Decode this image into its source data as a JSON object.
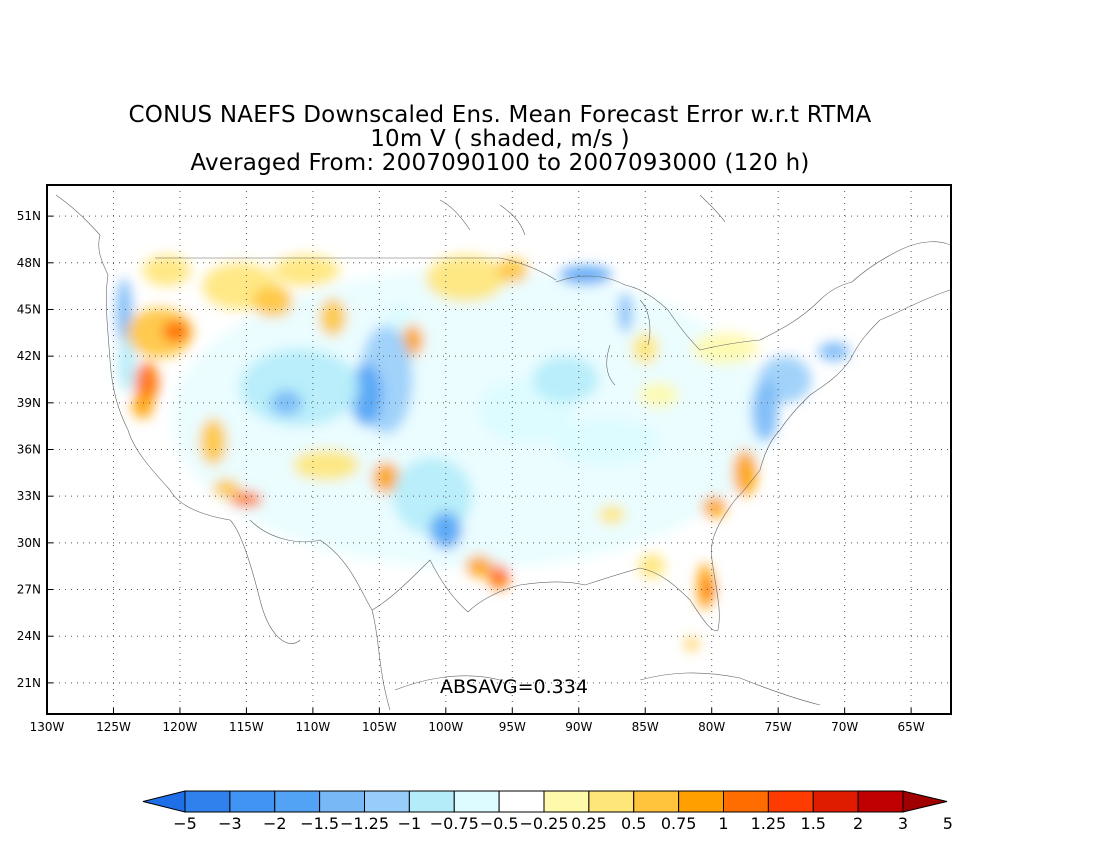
{
  "title": {
    "line1": "CONUS NAEFS Downscaled Ens. Mean Forecast Error w.r.t RTMA",
    "line2": "10m V ( shaded, m/s )",
    "line3": "Averaged From: 2007090100 to 2007093000 (120 h)"
  },
  "stat": {
    "text": "ABSAVG=0.334",
    "value": 0.334
  },
  "axes": {
    "lat_labels": [
      "21N",
      "24N",
      "27N",
      "30N",
      "33N",
      "36N",
      "39N",
      "42N",
      "45N",
      "48N",
      "51N"
    ],
    "lat_values": [
      21,
      24,
      27,
      30,
      33,
      36,
      39,
      42,
      45,
      48,
      51
    ],
    "lon_labels": [
      "130W",
      "125W",
      "120W",
      "115W",
      "110W",
      "105W",
      "100W",
      "95W",
      "90W",
      "85W",
      "80W",
      "75W",
      "70W",
      "65W"
    ],
    "lon_values": [
      -130,
      -125,
      -120,
      -115,
      -110,
      -105,
      -100,
      -95,
      -90,
      -85,
      -80,
      -75,
      -70,
      -65
    ],
    "lon_range": [
      -130,
      -62
    ],
    "lat_range": [
      19,
      53
    ],
    "grid": "dotted"
  },
  "colorbar": {
    "colors": [
      "#1f6fe8",
      "#2f82ee",
      "#3f94f4",
      "#52a3f5",
      "#78b8f7",
      "#98cdf9",
      "#b4ecfa",
      "#dcfcff",
      "#ffffff",
      "#fffaab",
      "#ffe678",
      "#ffc43c",
      "#ffa000",
      "#ff6d00",
      "#ff3c00",
      "#e01c00",
      "#c00000",
      "#a00000"
    ],
    "labels": [
      "−5",
      "−3",
      "−2",
      "−1.5",
      "−1.25",
      "−1",
      "−0.75",
      "−0.5",
      "−0.25",
      "0.25",
      "0.5",
      "0.75",
      "1",
      "1.25",
      "1.5",
      "2",
      "3",
      "5"
    ]
  },
  "chart_data": {
    "type": "heatmap",
    "variable": "10m V",
    "units": "m/s",
    "absavg": 0.334,
    "blobs": [
      {
        "lon": -124.2,
        "lat": 44.8,
        "rx": 0.6,
        "ry": 2.2,
        "c": 4
      },
      {
        "lon": -124.0,
        "lat": 41.5,
        "rx": 0.7,
        "ry": 1.8,
        "c": 6
      },
      {
        "lon": -121.5,
        "lat": 43.5,
        "rx": 2.5,
        "ry": 1.6,
        "c": 11
      },
      {
        "lon": -120.3,
        "lat": 43.6,
        "rx": 1.0,
        "ry": 0.7,
        "c": 13
      },
      {
        "lon": -122.5,
        "lat": 40.3,
        "rx": 0.9,
        "ry": 1.3,
        "c": 13
      },
      {
        "lon": -122.8,
        "lat": 38.8,
        "rx": 0.8,
        "ry": 0.8,
        "c": 12
      },
      {
        "lon": -121.0,
        "lat": 47.5,
        "rx": 1.8,
        "ry": 1.0,
        "c": 10
      },
      {
        "lon": -115.5,
        "lat": 46.5,
        "rx": 2.8,
        "ry": 1.5,
        "c": 10
      },
      {
        "lon": -113.0,
        "lat": 45.5,
        "rx": 1.5,
        "ry": 1.0,
        "c": 11
      },
      {
        "lon": -110.5,
        "lat": 47.5,
        "rx": 2.5,
        "ry": 1.0,
        "c": 10
      },
      {
        "lon": -108.5,
        "lat": 44.5,
        "rx": 1.0,
        "ry": 1.2,
        "c": 11
      },
      {
        "lon": -102.5,
        "lat": 43.0,
        "rx": 0.8,
        "ry": 1.0,
        "c": 12
      },
      {
        "lon": -98.5,
        "lat": 47.0,
        "rx": 3.0,
        "ry": 1.5,
        "c": 10
      },
      {
        "lon": -103.5,
        "lat": 44.5,
        "rx": 1.0,
        "ry": 0.8,
        "c": 7
      },
      {
        "lon": -104.5,
        "lat": 40.5,
        "rx": 2.0,
        "ry": 3.5,
        "c": 5
      },
      {
        "lon": -106.0,
        "lat": 39.5,
        "rx": 1.2,
        "ry": 2.0,
        "c": 3
      },
      {
        "lon": -111.0,
        "lat": 40.0,
        "rx": 4.5,
        "ry": 2.5,
        "c": 6
      },
      {
        "lon": -112.0,
        "lat": 39.0,
        "rx": 1.2,
        "ry": 0.8,
        "c": 4
      },
      {
        "lon": -117.5,
        "lat": 36.5,
        "rx": 1.0,
        "ry": 1.5,
        "c": 11
      },
      {
        "lon": -115.0,
        "lat": 32.8,
        "rx": 1.2,
        "ry": 0.5,
        "c": 13
      },
      {
        "lon": -116.5,
        "lat": 33.5,
        "rx": 1.0,
        "ry": 0.6,
        "c": 11
      },
      {
        "lon": -109.0,
        "lat": 35.0,
        "rx": 2.5,
        "ry": 1.0,
        "c": 10
      },
      {
        "lon": -104.5,
        "lat": 34.2,
        "rx": 1.0,
        "ry": 1.0,
        "c": 12
      },
      {
        "lon": -101.0,
        "lat": 33.0,
        "rx": 3.0,
        "ry": 2.5,
        "c": 6
      },
      {
        "lon": -100.0,
        "lat": 30.8,
        "rx": 1.2,
        "ry": 1.2,
        "c": 3
      },
      {
        "lon": -97.5,
        "lat": 28.5,
        "rx": 1.0,
        "ry": 0.7,
        "c": 12
      },
      {
        "lon": -96.0,
        "lat": 27.8,
        "rx": 0.8,
        "ry": 0.8,
        "c": 13
      },
      {
        "lon": -94.0,
        "lat": 38.5,
        "rx": 3.5,
        "ry": 2.0,
        "c": 7
      },
      {
        "lon": -88.0,
        "lat": 36.5,
        "rx": 4.0,
        "ry": 1.5,
        "c": 7
      },
      {
        "lon": -91.0,
        "lat": 40.5,
        "rx": 2.5,
        "ry": 1.5,
        "c": 6
      },
      {
        "lon": -89.5,
        "lat": 47.2,
        "rx": 2.0,
        "ry": 0.6,
        "c": 3
      },
      {
        "lon": -86.5,
        "lat": 44.8,
        "rx": 0.5,
        "ry": 1.3,
        "c": 4
      },
      {
        "lon": -85.0,
        "lat": 42.5,
        "rx": 1.0,
        "ry": 1.0,
        "c": 10
      },
      {
        "lon": -79.0,
        "lat": 42.5,
        "rx": 2.5,
        "ry": 1.0,
        "c": 9
      },
      {
        "lon": -74.5,
        "lat": 40.5,
        "rx": 2.0,
        "ry": 1.5,
        "c": 5
      },
      {
        "lon": -70.8,
        "lat": 42.3,
        "rx": 1.2,
        "ry": 0.6,
        "c": 4
      },
      {
        "lon": -76.0,
        "lat": 38.5,
        "rx": 1.0,
        "ry": 2.0,
        "c": 4
      },
      {
        "lon": -77.5,
        "lat": 34.5,
        "rx": 0.9,
        "ry": 1.5,
        "c": 12
      },
      {
        "lon": -79.8,
        "lat": 32.3,
        "rx": 0.9,
        "ry": 0.7,
        "c": 12
      },
      {
        "lon": -80.5,
        "lat": 27.2,
        "rx": 0.6,
        "ry": 1.5,
        "c": 12
      },
      {
        "lon": -80.2,
        "lat": 27.0,
        "rx": 0.4,
        "ry": 0.8,
        "c": 13
      },
      {
        "lon": -81.5,
        "lat": 23.5,
        "rx": 0.5,
        "ry": 0.4,
        "c": 11
      },
      {
        "lon": -84.5,
        "lat": 28.5,
        "rx": 1.0,
        "ry": 0.8,
        "c": 10
      },
      {
        "lon": -87.5,
        "lat": 31.8,
        "rx": 1.0,
        "ry": 0.6,
        "c": 10
      },
      {
        "lon": -84.0,
        "lat": 39.5,
        "rx": 1.5,
        "ry": 0.8,
        "c": 9
      },
      {
        "lon": -95.0,
        "lat": 47.5,
        "rx": 1.2,
        "ry": 0.8,
        "c": 11
      }
    ]
  }
}
